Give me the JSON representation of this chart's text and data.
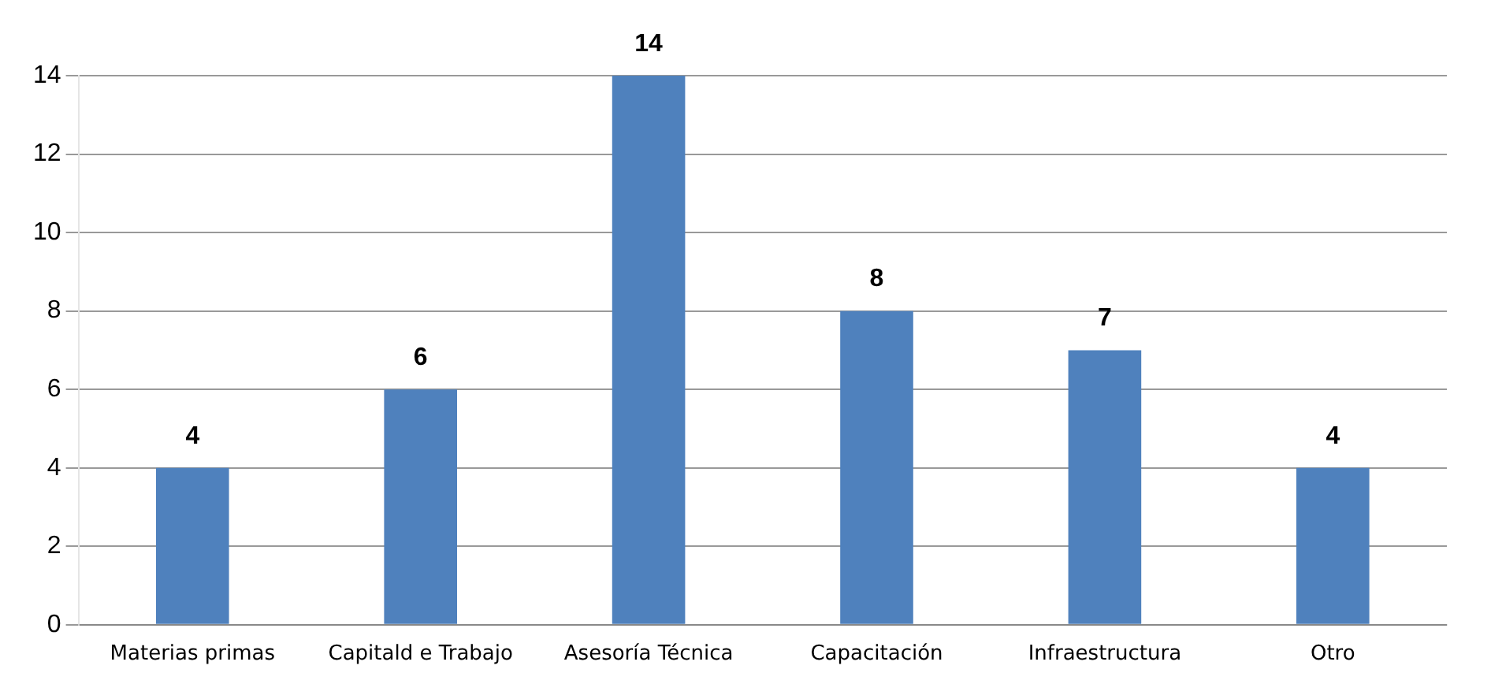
{
  "chart_data": {
    "type": "bar",
    "categories": [
      "Materias primas",
      "Capitald e Trabajo",
      "Asesoría Técnica",
      "Capacitación",
      "Infraestructura",
      "Otro"
    ],
    "values": [
      4,
      6,
      14,
      8,
      7,
      4
    ],
    "color": "#4f81bd",
    "ylim": [
      0,
      14
    ],
    "yticks": [
      0,
      2,
      4,
      6,
      8,
      10,
      12,
      14
    ],
    "grid": "y",
    "data_labels": true
  }
}
